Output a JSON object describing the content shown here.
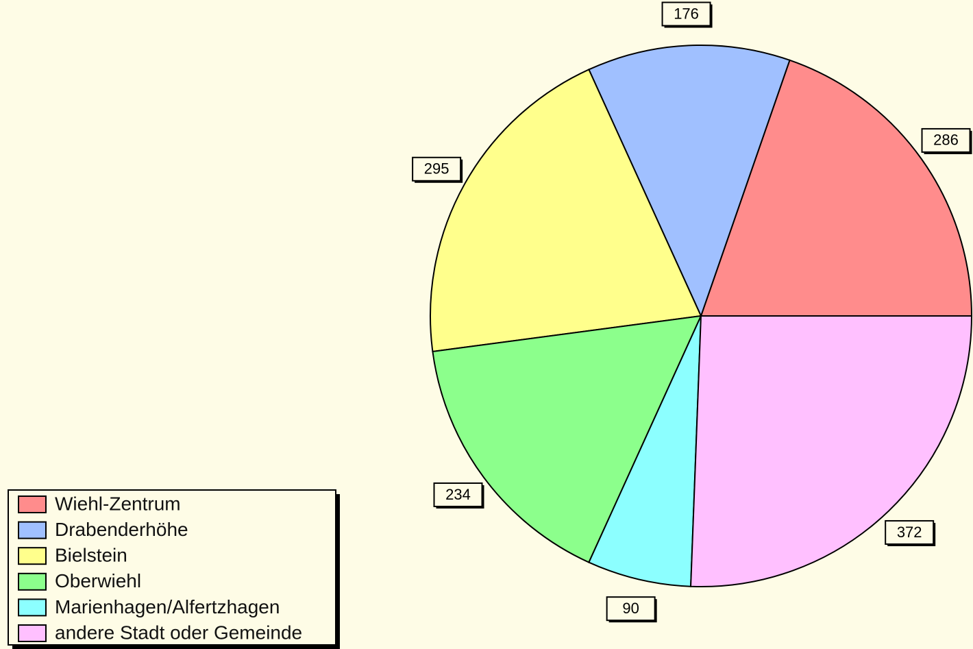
{
  "chart_data": {
    "type": "pie",
    "categories": [
      "Wiehl-Zentrum",
      "Drabenderhöhe",
      "Bielstein",
      "Oberwiehl",
      "Marienhagen/Alfertzhagen",
      "andere Stadt oder Gemeinde"
    ],
    "values": [
      286,
      176,
      295,
      234,
      90,
      372
    ],
    "colors": [
      "#ff8c8c",
      "#a0c0ff",
      "#ffff8c",
      "#8cff8c",
      "#8cffff",
      "#ffc0ff"
    ],
    "legend": "bottom-left"
  }
}
